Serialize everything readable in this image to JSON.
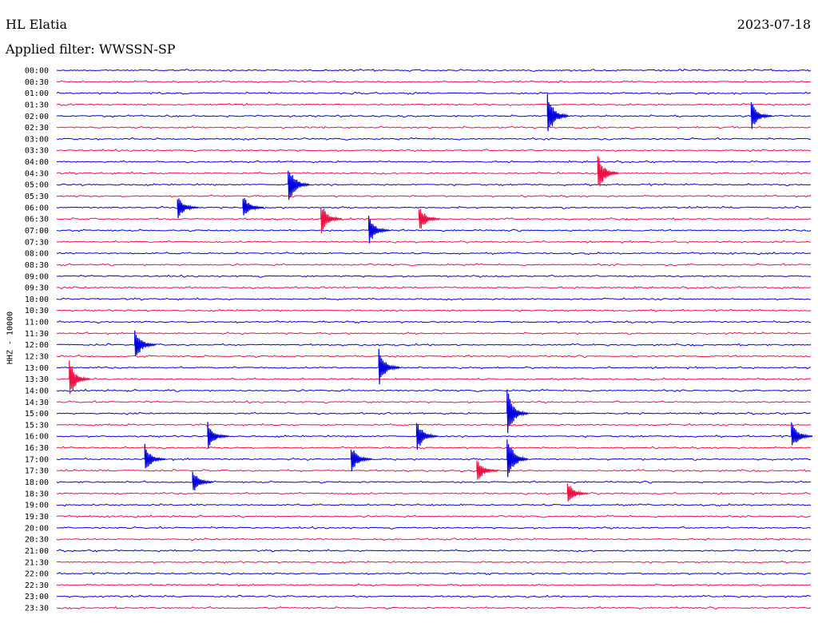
{
  "header": {
    "station": "HL Elatia",
    "date": "2023-07-18",
    "filter": "Applied filter: WWSSN-SP"
  },
  "chart_data": {
    "type": "line",
    "title": "HL Elatia",
    "ylabel": "HHZ - 10000",
    "colors": [
      "#0000dd",
      "#ee1144"
    ],
    "row_labels": [
      "00:00",
      "00:30",
      "01:00",
      "01:30",
      "02:00",
      "02:30",
      "03:00",
      "03:30",
      "04:00",
      "04:30",
      "05:00",
      "05:30",
      "06:00",
      "06:30",
      "07:00",
      "07:30",
      "08:00",
      "08:30",
      "09:00",
      "09:30",
      "10:00",
      "10:30",
      "11:00",
      "11:30",
      "12:00",
      "12:30",
      "13:00",
      "13:30",
      "14:00",
      "14:30",
      "15:00",
      "15:30",
      "16:00",
      "16:30",
      "17:00",
      "17:30",
      "18:00",
      "18:30",
      "19:00",
      "19:30",
      "20:00",
      "20:30",
      "21:00",
      "21:30",
      "22:00",
      "22:30",
      "23:00",
      "23:30"
    ],
    "line_minutes": 30,
    "events": [
      {
        "row": 4,
        "minute": 19.5,
        "amplitude": 1.0
      },
      {
        "row": 4,
        "minute": 27.6,
        "amplitude": 0.6
      },
      {
        "row": 9,
        "minute": 21.5,
        "amplitude": 0.8
      },
      {
        "row": 10,
        "minute": 9.2,
        "amplitude": 0.9
      },
      {
        "row": 12,
        "minute": 4.8,
        "amplitude": 0.5
      },
      {
        "row": 12,
        "minute": 7.4,
        "amplitude": 0.5
      },
      {
        "row": 13,
        "minute": 10.5,
        "amplitude": 0.7
      },
      {
        "row": 13,
        "minute": 14.4,
        "amplitude": 0.6
      },
      {
        "row": 14,
        "minute": 12.4,
        "amplitude": 0.6
      },
      {
        "row": 24,
        "minute": 3.1,
        "amplitude": 0.7
      },
      {
        "row": 26,
        "minute": 12.8,
        "amplitude": 0.8
      },
      {
        "row": 27,
        "minute": 0.5,
        "amplitude": 0.8
      },
      {
        "row": 30,
        "minute": 17.9,
        "amplitude": 1.0
      },
      {
        "row": 32,
        "minute": 6.0,
        "amplitude": 0.6
      },
      {
        "row": 32,
        "minute": 14.3,
        "amplitude": 0.7
      },
      {
        "row": 32,
        "minute": 29.2,
        "amplitude": 0.6
      },
      {
        "row": 34,
        "minute": 3.5,
        "amplitude": 0.6
      },
      {
        "row": 34,
        "minute": 11.7,
        "amplitude": 0.6
      },
      {
        "row": 34,
        "minute": 17.9,
        "amplitude": 1.0
      },
      {
        "row": 35,
        "minute": 16.7,
        "amplitude": 0.5
      },
      {
        "row": 36,
        "minute": 5.4,
        "amplitude": 0.5
      },
      {
        "row": 37,
        "minute": 20.3,
        "amplitude": 0.5
      }
    ]
  }
}
